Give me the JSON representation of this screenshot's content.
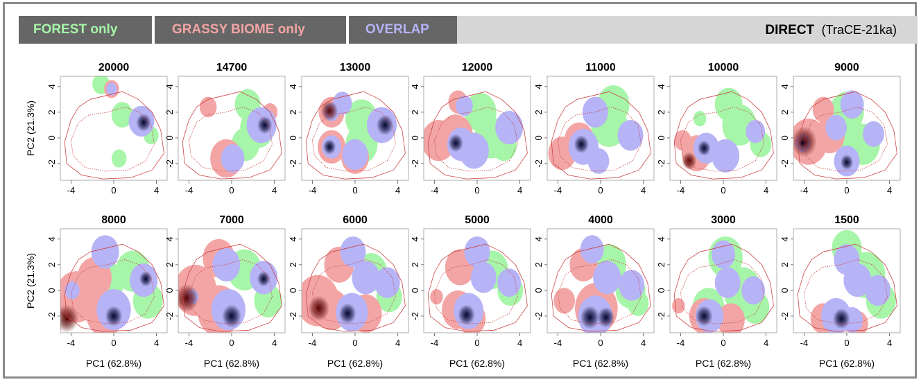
{
  "legend": {
    "forest": "FOREST only",
    "grassy": "GRASSY BIOME only",
    "overlap": "OVERLAP",
    "direct": "DIRECT",
    "direct_sub": "(TraCE-21ka)"
  },
  "colors": {
    "forest": "#a6f5a8",
    "grassy": "#f3a5a5",
    "overlap": "#b6b3f6",
    "dense_overlap": "#06062e",
    "dense_grassy": "#5a0404",
    "contour": "#cc4444",
    "banner_dark": "#666666",
    "banner_light": "#d6d6d6"
  },
  "chart_data": {
    "type": "heatmap",
    "xlabel": "PC1 (62.8%)",
    "ylabel": "PC2 (21.3%)",
    "xlim": [
      -5,
      5
    ],
    "ylim": [
      -3.3,
      4.8
    ],
    "xticks": [
      -4,
      0,
      4
    ],
    "yticks": [
      4,
      2,
      0,
      -2
    ],
    "panels": [
      {
        "title": "20000",
        "forest": [
          [
            -1.2,
            4.2,
            0.8
          ],
          [
            0.8,
            1.8,
            1
          ],
          [
            2.6,
            1.2,
            1.1
          ],
          [
            3.5,
            0.2,
            0.7
          ],
          [
            0.5,
            -1.6,
            0.7
          ]
        ],
        "grassy": [
          [
            -0.2,
            3.8,
            0.7
          ]
        ],
        "overlap": [
          [
            -0.2,
            3.8,
            0.5
          ],
          [
            2.6,
            1.3,
            1.2
          ]
        ],
        "dark_overlap": [
          [
            2.8,
            1.2,
            0.7
          ]
        ],
        "dark_grassy": []
      },
      {
        "title": "14700",
        "forest": [
          [
            1.5,
            2.6,
            1.2
          ],
          [
            2.4,
            0.8,
            1.6
          ],
          [
            1.3,
            -0.5,
            1.3
          ]
        ],
        "grassy": [
          [
            -2.2,
            2.4,
            0.8
          ],
          [
            -0.5,
            -1.6,
            1.5
          ],
          [
            3.6,
            2,
            0.7
          ]
        ],
        "overlap": [
          [
            2.8,
            1,
            1.4
          ],
          [
            0.1,
            -1.6,
            1.1
          ]
        ],
        "dark_overlap": [
          [
            3.1,
            1,
            0.7
          ]
        ],
        "dark_grassy": []
      },
      {
        "title": "13000",
        "forest": [
          [
            0.6,
            1.5,
            1.5
          ],
          [
            0.6,
            -0.5,
            1.5
          ]
        ],
        "grassy": [
          [
            -2.2,
            2,
            1.2
          ],
          [
            -2.2,
            -0.7,
            1.3
          ],
          [
            0,
            -1.5,
            1.3
          ]
        ],
        "overlap": [
          [
            -1.2,
            2.7,
            0.9
          ],
          [
            2.5,
            1,
            1.4
          ],
          [
            0,
            -1.3,
            1.2
          ],
          [
            -2.2,
            -0.7,
            0.9
          ],
          [
            -2.2,
            2,
            0.7
          ]
        ],
        "dark_overlap": [
          [
            2.8,
            1,
            0.8
          ],
          [
            -2.4,
            -0.7,
            0.6
          ]
        ],
        "dark_grassy": [
          [
            -2.4,
            2.1,
            0.8
          ]
        ]
      },
      {
        "title": "12000",
        "forest": [
          [
            0.3,
            2,
            1.5
          ],
          [
            1.3,
            0,
            1.6
          ],
          [
            2.5,
            -0.6,
            1.2
          ]
        ],
        "grassy": [
          [
            -3.6,
            -0.2,
            1.6
          ],
          [
            -2,
            0.2,
            1.6
          ],
          [
            -1.8,
            2.8,
            0.9
          ]
        ],
        "overlap": [
          [
            -1.2,
            2.5,
            0.8
          ],
          [
            -1.5,
            -0.5,
            1.3
          ],
          [
            3,
            0.8,
            1.3
          ],
          [
            -0.3,
            -1,
            1.4
          ]
        ],
        "dark_overlap": [
          [
            -2,
            -0.4,
            0.7
          ]
        ],
        "dark_grassy": []
      },
      {
        "title": "11000",
        "forest": [
          [
            1.2,
            2.6,
            1.5
          ],
          [
            0.8,
            1,
            1.7
          ]
        ],
        "grassy": [
          [
            -3.6,
            -1.2,
            1.3
          ],
          [
            -2,
            -0.2,
            1.4
          ]
        ],
        "overlap": [
          [
            -0.5,
            2,
            1.2
          ],
          [
            2.8,
            0.2,
            1.2
          ],
          [
            -1.6,
            -0.7,
            1.4
          ],
          [
            -0.2,
            -1.8,
            1
          ]
        ],
        "dark_overlap": [
          [
            -1.8,
            -0.5,
            0.7
          ]
        ],
        "dark_grassy": []
      },
      {
        "title": "10000",
        "forest": [
          [
            0.5,
            2.6,
            1.3
          ],
          [
            1.5,
            1,
            1.6
          ],
          [
            -2.2,
            1.5,
            0.6
          ],
          [
            3.5,
            -0.5,
            1
          ]
        ],
        "grassy": [
          [
            -3.8,
            -0.2,
            0.8
          ],
          [
            -2.5,
            -1.2,
            1.4
          ]
        ],
        "overlap": [
          [
            -1.6,
            -0.8,
            1.2
          ],
          [
            3,
            0.5,
            0.9
          ],
          [
            0.2,
            -1.4,
            1.3
          ]
        ],
        "dark_overlap": [
          [
            -1.8,
            -0.8,
            0.6
          ]
        ],
        "dark_grassy": [
          [
            -3.2,
            -1.8,
            0.7
          ]
        ]
      },
      {
        "title": "9000",
        "forest": [
          [
            0,
            2,
            1.6
          ],
          [
            1.5,
            -0.5,
            1.6
          ],
          [
            -0.5,
            0.5,
            1.6
          ]
        ],
        "grassy": [
          [
            -3.6,
            -0.3,
            1.8
          ],
          [
            -1.6,
            0.2,
            1.4
          ],
          [
            -2.2,
            2.2,
            1
          ]
        ],
        "overlap": [
          [
            -1,
            0.8,
            1
          ],
          [
            0.5,
            2.6,
            1.1
          ],
          [
            2.5,
            0.3,
            1
          ],
          [
            0,
            -1.8,
            1.2
          ],
          [
            -4.1,
            -0.4,
            0.7
          ]
        ],
        "dark_overlap": [
          [
            -4.1,
            -0.4,
            0.3
          ],
          [
            0,
            -1.9,
            0.6
          ]
        ],
        "dark_grassy": [
          [
            -4,
            -0.3,
            1.2
          ]
        ]
      },
      {
        "title": "8000",
        "forest": [
          [
            1.8,
            1.5,
            1.6
          ],
          [
            3.2,
            -0.8,
            1.4
          ],
          [
            -0.5,
            0.7,
            1.5
          ]
        ],
        "grassy": [
          [
            -3.5,
            -0.5,
            2
          ],
          [
            -1.8,
            1,
            1.6
          ],
          [
            -0.8,
            -1.8,
            1.8
          ]
        ],
        "overlap": [
          [
            -0.8,
            3,
            1.3
          ],
          [
            2.8,
            0.8,
            1.3
          ],
          [
            0,
            -1.5,
            1.6
          ],
          [
            -3.9,
            0,
            0.7
          ]
        ],
        "dark_overlap": [
          [
            0,
            -2,
            0.8
          ],
          [
            3,
            0.9,
            0.6
          ]
        ],
        "dark_grassy": [
          [
            -4.4,
            -2.2,
            1.1
          ]
        ]
      },
      {
        "title": "7000",
        "forest": [
          [
            1.2,
            1.6,
            1.6
          ],
          [
            3.4,
            -0.8,
            1.3
          ]
        ],
        "grassy": [
          [
            -3.4,
            0,
            2
          ],
          [
            -1.2,
            2.5,
            1.5
          ],
          [
            -1.2,
            -1.6,
            2
          ]
        ],
        "overlap": [
          [
            -0.5,
            2,
            1.3
          ],
          [
            3,
            1,
            1.3
          ],
          [
            -0.3,
            -1.5,
            1.6
          ],
          [
            -3.7,
            -0.5,
            0.6
          ]
        ],
        "dark_overlap": [
          [
            0,
            -2,
            0.9
          ],
          [
            3,
            0.9,
            0.6
          ]
        ],
        "dark_grassy": [
          [
            -4.2,
            -0.6,
            1.1
          ]
        ]
      },
      {
        "title": "6000",
        "forest": [
          [
            1.5,
            1.4,
            1.5
          ],
          [
            3.2,
            -0.5,
            1.2
          ]
        ],
        "grassy": [
          [
            -3.5,
            -0.8,
            2
          ],
          [
            -1.5,
            2,
            1.4
          ],
          [
            -2.2,
            -1.5,
            1.6
          ],
          [
            1,
            -1.8,
            1.5
          ]
        ],
        "overlap": [
          [
            -0.2,
            3,
            1.2
          ],
          [
            1,
            1,
            1.3
          ],
          [
            3,
            0.6,
            1.2
          ],
          [
            -0.3,
            -1.7,
            1.5
          ]
        ],
        "dark_overlap": [
          [
            -0.7,
            -1.8,
            0.8
          ]
        ],
        "dark_grassy": [
          [
            -3.4,
            -1.4,
            1
          ]
        ]
      },
      {
        "title": "5000",
        "forest": [
          [
            1.4,
            1.6,
            1.5
          ],
          [
            3.1,
            0,
            1.2
          ]
        ],
        "grassy": [
          [
            -1.6,
            1.8,
            1.4
          ],
          [
            -1.8,
            -1.5,
            1.5
          ],
          [
            -0.5,
            -2.2,
            1.3
          ],
          [
            -3.8,
            -0.5,
            0.6
          ]
        ],
        "overlap": [
          [
            0,
            3,
            1.2
          ],
          [
            0.6,
            1,
            1.2
          ],
          [
            3,
            0.6,
            1.1
          ],
          [
            -0.8,
            -1.6,
            1.4
          ]
        ],
        "dark_overlap": [
          [
            -1,
            -1.9,
            0.8
          ]
        ],
        "dark_grassy": []
      },
      {
        "title": "4000",
        "forest": [
          [
            0.8,
            2,
            1.6
          ],
          [
            2.8,
            0,
            1.4
          ],
          [
            3.5,
            -1,
            1
          ]
        ],
        "grassy": [
          [
            -3.4,
            -0.8,
            1
          ],
          [
            -1.6,
            2,
            1.3
          ],
          [
            -0.4,
            -1.4,
            2
          ]
        ],
        "overlap": [
          [
            -0.8,
            3.2,
            1.1
          ],
          [
            0.6,
            1,
            1.3
          ],
          [
            2.9,
            0.4,
            1.2
          ],
          [
            -0.5,
            -2,
            1.6
          ]
        ],
        "dark_overlap": [
          [
            -1,
            -2.1,
            0.9
          ],
          [
            0.5,
            -2.1,
            0.8
          ]
        ],
        "dark_grassy": []
      },
      {
        "title": "3000",
        "forest": [
          [
            0.2,
            2.6,
            1.6
          ],
          [
            1.8,
            0,
            1.8
          ],
          [
            3,
            -1.3,
            1.3
          ],
          [
            -1.4,
            -1.3,
            1.5
          ]
        ],
        "grassy": [
          [
            -4.2,
            -1.2,
            0.6
          ],
          [
            -1.8,
            -2,
            1.4
          ],
          [
            0.7,
            -2.3,
            1.3
          ]
        ],
        "overlap": [
          [
            0,
            2.8,
            1.1
          ],
          [
            0.4,
            0.6,
            1.2
          ],
          [
            2.8,
            0,
            1.1
          ],
          [
            -1.3,
            -2,
            1.3
          ]
        ],
        "dark_overlap": [
          [
            -1.8,
            -2,
            0.8
          ]
        ],
        "dark_grassy": []
      },
      {
        "title": "1500",
        "forest": [
          [
            0,
            3.3,
            1.4
          ],
          [
            1.8,
            1.2,
            1.8
          ],
          [
            3.2,
            -0.8,
            1.4
          ]
        ],
        "grassy": [
          [
            -2.2,
            -2.2,
            1.2
          ],
          [
            1,
            -2.6,
            1
          ]
        ],
        "overlap": [
          [
            0,
            2.4,
            1.2
          ],
          [
            1,
            0.8,
            1.3
          ],
          [
            2.9,
            0,
            1.2
          ],
          [
            -1,
            -2,
            1.4
          ],
          [
            0.5,
            -2.3,
            1
          ]
        ],
        "dark_overlap": [
          [
            -0.5,
            -2.2,
            0.8
          ]
        ],
        "dark_grassy": []
      }
    ]
  }
}
